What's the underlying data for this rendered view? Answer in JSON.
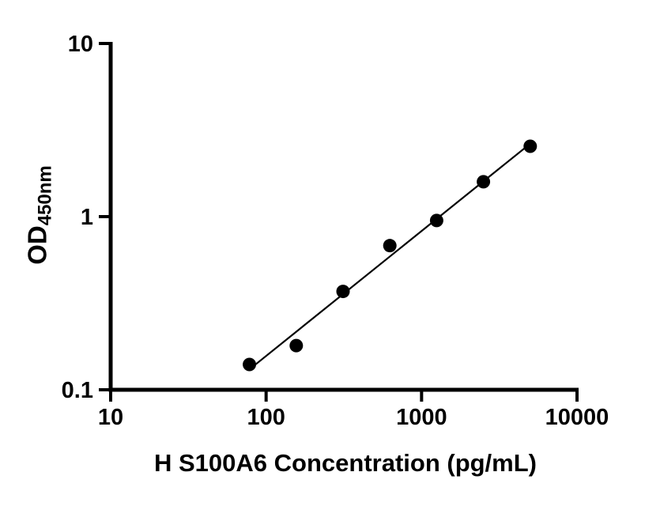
{
  "chart_data": {
    "type": "scatter",
    "x": [
      78.1,
      156.3,
      312.5,
      625,
      1250,
      2500,
      5000
    ],
    "y": [
      0.14,
      0.18,
      0.37,
      0.68,
      0.95,
      1.59,
      2.55
    ],
    "fit_line": true,
    "title": "",
    "xlabel": "H S100A6 Concentration (pg/mL)",
    "ylabel_main": "OD",
    "ylabel_sub": "450nm",
    "x_scale": "log",
    "y_scale": "log",
    "xlim": [
      10,
      10000
    ],
    "ylim": [
      0.1,
      10
    ],
    "x_ticks": [
      10,
      100,
      1000,
      10000
    ],
    "x_tick_labels": [
      "10",
      "100",
      "1000",
      "10000"
    ],
    "y_ticks": [
      0.1,
      1,
      10
    ],
    "y_tick_labels": [
      "0.1",
      "1",
      "10"
    ],
    "grid": false,
    "legend": "none",
    "point_color": "#000000",
    "line_color": "#000000",
    "axis_color": "#000000",
    "background_color": "#ffffff"
  }
}
